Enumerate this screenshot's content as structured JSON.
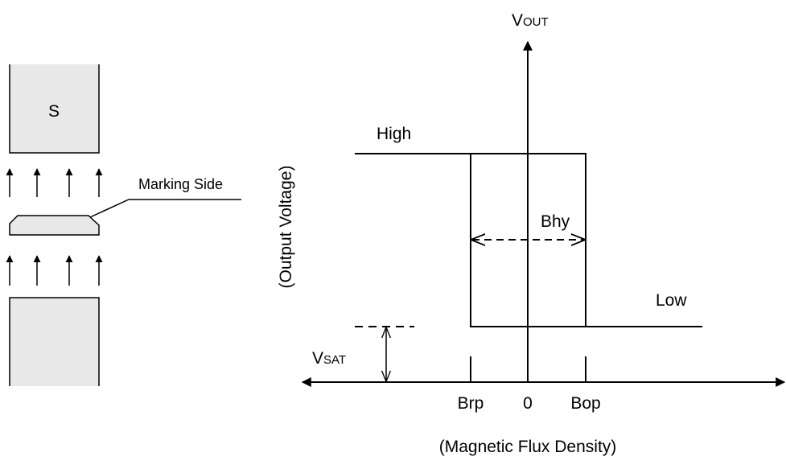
{
  "magnet_label": "S",
  "marking_side": "Marking Side",
  "y_axis_title": {
    "main": "V",
    "sub": "OUT"
  },
  "y_axis_label": "(Output Voltage)",
  "x_axis_label": "(Magnetic Flux Density)",
  "high": "High",
  "low": "Low",
  "hysteresis": "Bhy",
  "saturation": {
    "main": "V",
    "sub": "SAT"
  },
  "x_ticks": [
    "Brp",
    "0",
    "Bop"
  ]
}
